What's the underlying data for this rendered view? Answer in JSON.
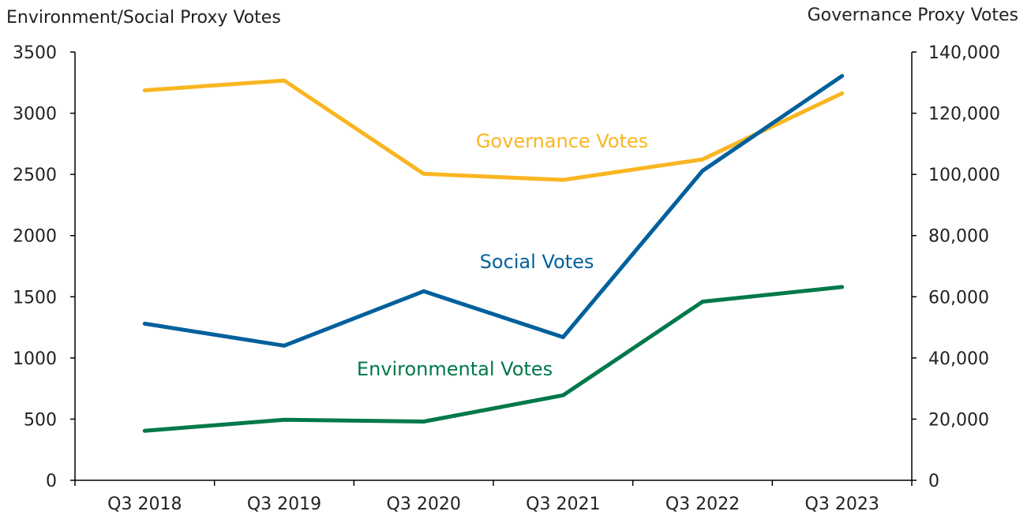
{
  "chart_data": {
    "type": "line",
    "categories": [
      "Q3 2018",
      "Q3 2019",
      "Q3 2020",
      "Q3 2021",
      "Q3 2022",
      "Q3 2023"
    ],
    "left_axis": {
      "title": "Environment/Social Proxy Votes",
      "range": [
        0,
        3500
      ],
      "ticks": [
        0,
        500,
        1000,
        1500,
        2000,
        2500,
        3000,
        3500
      ],
      "tick_labels": [
        "0",
        "500",
        "1000",
        "1500",
        "2000",
        "2500",
        "3000",
        "3500"
      ]
    },
    "right_axis": {
      "title": "Governance Proxy Votes",
      "range": [
        0,
        140000
      ],
      "ticks": [
        0,
        20000,
        40000,
        60000,
        80000,
        100000,
        120000,
        140000
      ],
      "tick_labels": [
        "0",
        "20,000",
        "40,000",
        "60,000",
        "80,000",
        "100,000",
        "120,000",
        "140,000"
      ]
    },
    "series": [
      {
        "name": "Governance Votes",
        "axis": "right",
        "color": "#f9b621",
        "values": [
          127500,
          130700,
          100200,
          98200,
          104900,
          126500
        ]
      },
      {
        "name": "Social Votes",
        "axis": "left",
        "color": "#00609c",
        "values": [
          1280,
          1100,
          1545,
          1170,
          2530,
          3305
        ]
      },
      {
        "name": "Environmental Votes",
        "axis": "left",
        "color": "#00784a",
        "values": [
          405,
          495,
          480,
          695,
          1460,
          1580
        ]
      }
    ],
    "grid": false,
    "legend": "inline labels"
  }
}
